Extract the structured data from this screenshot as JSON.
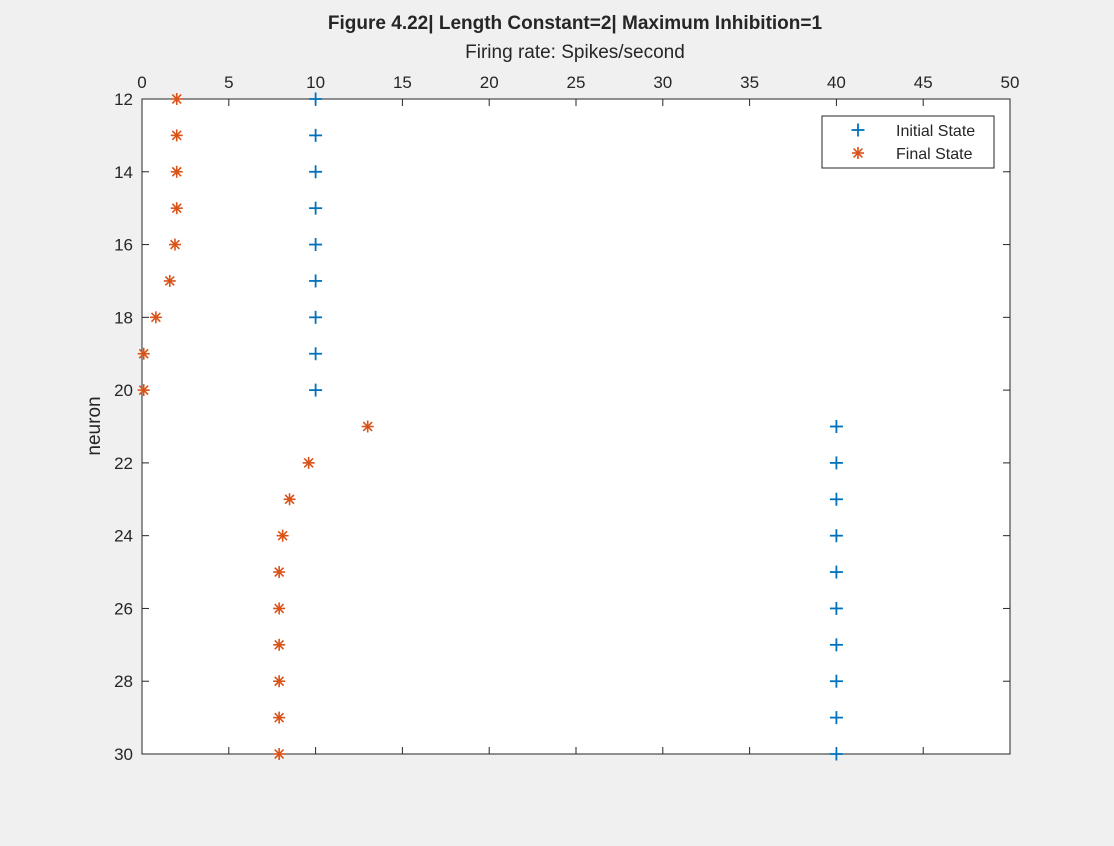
{
  "chart_data": {
    "type": "scatter",
    "title": "Figure 4.22| Length Constant=2| Maximum Inhibition=1",
    "xlabel": "Firing rate: Spikes/second",
    "ylabel": "neuron",
    "xlim": [
      0,
      50
    ],
    "ylim": [
      12,
      30
    ],
    "y_reversed": true,
    "x_axis_location": "top",
    "x_ticks": [
      "0",
      "5",
      "10",
      "15",
      "20",
      "25",
      "30",
      "35",
      "40",
      "45",
      "50"
    ],
    "y_ticks": [
      "12",
      "14",
      "16",
      "18",
      "20",
      "22",
      "24",
      "26",
      "28",
      "30"
    ],
    "grid": false,
    "legend_position": "top-right",
    "series": [
      {
        "name": "Initial State",
        "marker": "+",
        "color": "#0072BD",
        "points": [
          [
            10,
            12
          ],
          [
            10,
            13
          ],
          [
            10,
            14
          ],
          [
            10,
            15
          ],
          [
            10,
            16
          ],
          [
            10,
            17
          ],
          [
            10,
            18
          ],
          [
            10,
            19
          ],
          [
            10,
            20
          ],
          [
            40,
            21
          ],
          [
            40,
            22
          ],
          [
            40,
            23
          ],
          [
            40,
            24
          ],
          [
            40,
            25
          ],
          [
            40,
            26
          ],
          [
            40,
            27
          ],
          [
            40,
            28
          ],
          [
            40,
            29
          ],
          [
            40,
            30
          ]
        ]
      },
      {
        "name": "Final State",
        "marker": "*",
        "color": "#D95319",
        "points": [
          [
            2,
            12
          ],
          [
            2,
            13
          ],
          [
            2,
            14
          ],
          [
            2,
            15
          ],
          [
            1.9,
            16
          ],
          [
            1.6,
            17
          ],
          [
            0.8,
            18
          ],
          [
            0.1,
            19
          ],
          [
            0.1,
            20
          ],
          [
            13,
            21
          ],
          [
            9.6,
            22
          ],
          [
            8.5,
            23
          ],
          [
            8.1,
            24
          ],
          [
            7.9,
            25
          ],
          [
            7.9,
            26
          ],
          [
            7.9,
            27
          ],
          [
            7.9,
            28
          ],
          [
            7.9,
            29
          ],
          [
            7.9,
            30
          ]
        ]
      }
    ]
  }
}
